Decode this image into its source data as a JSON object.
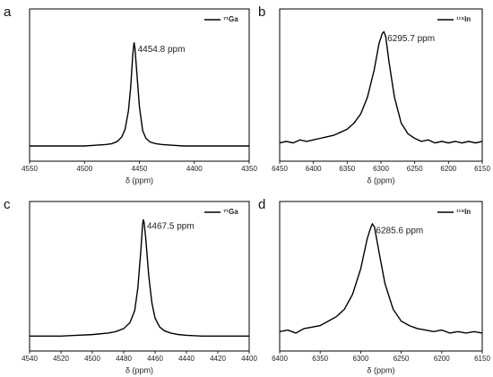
{
  "chart_data": [
    {
      "type": "line",
      "label": "a",
      "xlabel": "δ (ppm)",
      "legend": "upper right",
      "xlim": [
        4550,
        4350
      ],
      "xticks": [
        4550,
        4500,
        4450,
        4400,
        4350
      ],
      "ylim": [
        0,
        1
      ],
      "x": [
        4550,
        4540,
        4530,
        4520,
        4510,
        4500,
        4490,
        4480,
        4475,
        4470,
        4466,
        4463,
        4460,
        4458,
        4456,
        4455,
        4454.8,
        4454,
        4452,
        4450,
        4447,
        4444,
        4440,
        4435,
        4430,
        4420,
        4410,
        4400,
        4390,
        4380,
        4370,
        4360,
        4350
      ],
      "series": [
        {
          "name": "⁷¹Ga",
          "color": "#000000",
          "values": [
            0.1,
            0.1,
            0.1,
            0.1,
            0.1,
            0.1,
            0.105,
            0.11,
            0.115,
            0.13,
            0.16,
            0.21,
            0.33,
            0.48,
            0.7,
            0.77,
            0.78,
            0.74,
            0.55,
            0.36,
            0.2,
            0.15,
            0.125,
            0.115,
            0.11,
            0.105,
            0.1,
            0.1,
            0.1,
            0.1,
            0.1,
            0.1,
            0.1
          ]
        }
      ],
      "annotations": [
        {
          "text": "4454.8 ppm",
          "x": 4454.8,
          "color": "#e0201b"
        }
      ]
    },
    {
      "type": "line",
      "label": "b",
      "xlabel": "δ (ppm)",
      "legend": "upper right",
      "xlim": [
        6450,
        6150
      ],
      "xticks": [
        6450,
        6400,
        6350,
        6300,
        6250,
        6200,
        6150
      ],
      "ylim": [
        0,
        1
      ],
      "x": [
        6450,
        6440,
        6430,
        6420,
        6410,
        6400,
        6390,
        6380,
        6370,
        6360,
        6350,
        6340,
        6330,
        6320,
        6310,
        6303,
        6298,
        6295.7,
        6293,
        6288,
        6280,
        6270,
        6260,
        6250,
        6240,
        6230,
        6220,
        6210,
        6200,
        6190,
        6180,
        6170,
        6160,
        6150
      ],
      "series": [
        {
          "name": "¹¹⁵In",
          "color": "#000000",
          "values": [
            0.12,
            0.13,
            0.12,
            0.14,
            0.13,
            0.14,
            0.15,
            0.16,
            0.17,
            0.19,
            0.21,
            0.25,
            0.31,
            0.42,
            0.6,
            0.77,
            0.84,
            0.85,
            0.82,
            0.65,
            0.42,
            0.25,
            0.18,
            0.15,
            0.13,
            0.14,
            0.12,
            0.13,
            0.12,
            0.13,
            0.12,
            0.13,
            0.12,
            0.13
          ]
        }
      ],
      "annotations": [
        {
          "text": "6295.7 ppm",
          "x": 6295.7,
          "color": "#e0201b"
        }
      ]
    },
    {
      "type": "line",
      "label": "c",
      "xlabel": "δ (ppm)",
      "legend": "upper right",
      "xlim": [
        4540,
        4400
      ],
      "xticks": [
        4540,
        4520,
        4500,
        4480,
        4460,
        4440,
        4420,
        4400
      ],
      "ylim": [
        0,
        1
      ],
      "x": [
        4540,
        4530,
        4520,
        4510,
        4500,
        4490,
        4485,
        4480,
        4476,
        4473,
        4471,
        4469,
        4468,
        4467.5,
        4467,
        4466,
        4464,
        4462,
        4460,
        4457,
        4454,
        4450,
        4445,
        4440,
        4430,
        4420,
        4410,
        4400
      ],
      "series": [
        {
          "name": "⁷¹Ga",
          "color": "#000000",
          "values": [
            0.1,
            0.1,
            0.1,
            0.105,
            0.11,
            0.12,
            0.13,
            0.15,
            0.19,
            0.27,
            0.42,
            0.68,
            0.84,
            0.88,
            0.86,
            0.76,
            0.5,
            0.32,
            0.22,
            0.16,
            0.135,
            0.12,
            0.11,
            0.105,
            0.1,
            0.1,
            0.1,
            0.1
          ]
        }
      ],
      "annotations": [
        {
          "text": "4467.5 ppm",
          "x": 4467.5,
          "color": "#e0201b"
        }
      ]
    },
    {
      "type": "line",
      "label": "d",
      "xlabel": "δ (ppm)",
      "legend": "upper right",
      "xlim": [
        6400,
        6150
      ],
      "xticks": [
        6400,
        6350,
        6300,
        6250,
        6200,
        6150
      ],
      "ylim": [
        0,
        1
      ],
      "x": [
        6400,
        6390,
        6380,
        6370,
        6360,
        6350,
        6340,
        6330,
        6320,
        6310,
        6300,
        6292,
        6288,
        6285.6,
        6283,
        6278,
        6270,
        6260,
        6250,
        6240,
        6230,
        6220,
        6210,
        6200,
        6190,
        6180,
        6170,
        6160,
        6150
      ],
      "series": [
        {
          "name": "¹¹⁵In",
          "color": "#000000",
          "values": [
            0.13,
            0.14,
            0.12,
            0.15,
            0.16,
            0.17,
            0.2,
            0.23,
            0.28,
            0.38,
            0.55,
            0.75,
            0.82,
            0.85,
            0.83,
            0.68,
            0.45,
            0.28,
            0.2,
            0.17,
            0.15,
            0.14,
            0.13,
            0.14,
            0.12,
            0.13,
            0.12,
            0.13,
            0.12
          ]
        }
      ],
      "annotations": [
        {
          "text": "6285.6 ppm",
          "x": 6285.6,
          "color": "#e0201b"
        }
      ]
    }
  ]
}
